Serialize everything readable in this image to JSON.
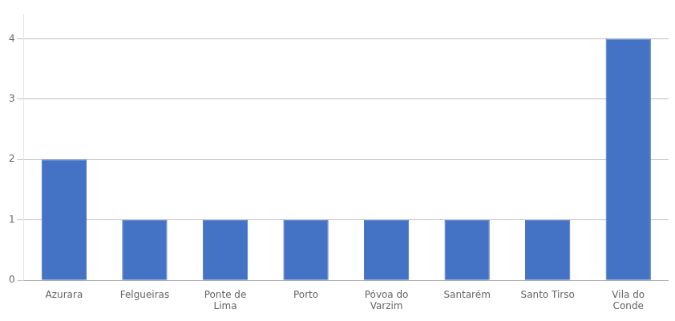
{
  "chart_data": {
    "type": "bar",
    "categories": [
      "Azurara",
      "Felgueiras",
      "Ponte de\nLima",
      "Porto",
      "Póvoa do\nVarzim",
      "Santarém",
      "Santo Tirso",
      "Vila do\nConde"
    ],
    "values": [
      2,
      1,
      1,
      1,
      1,
      1,
      1,
      4
    ],
    "color": "#4472C4",
    "ylim": [
      0,
      4.4
    ],
    "yticks": [
      0,
      1,
      2,
      3,
      4
    ],
    "grid": true
  }
}
